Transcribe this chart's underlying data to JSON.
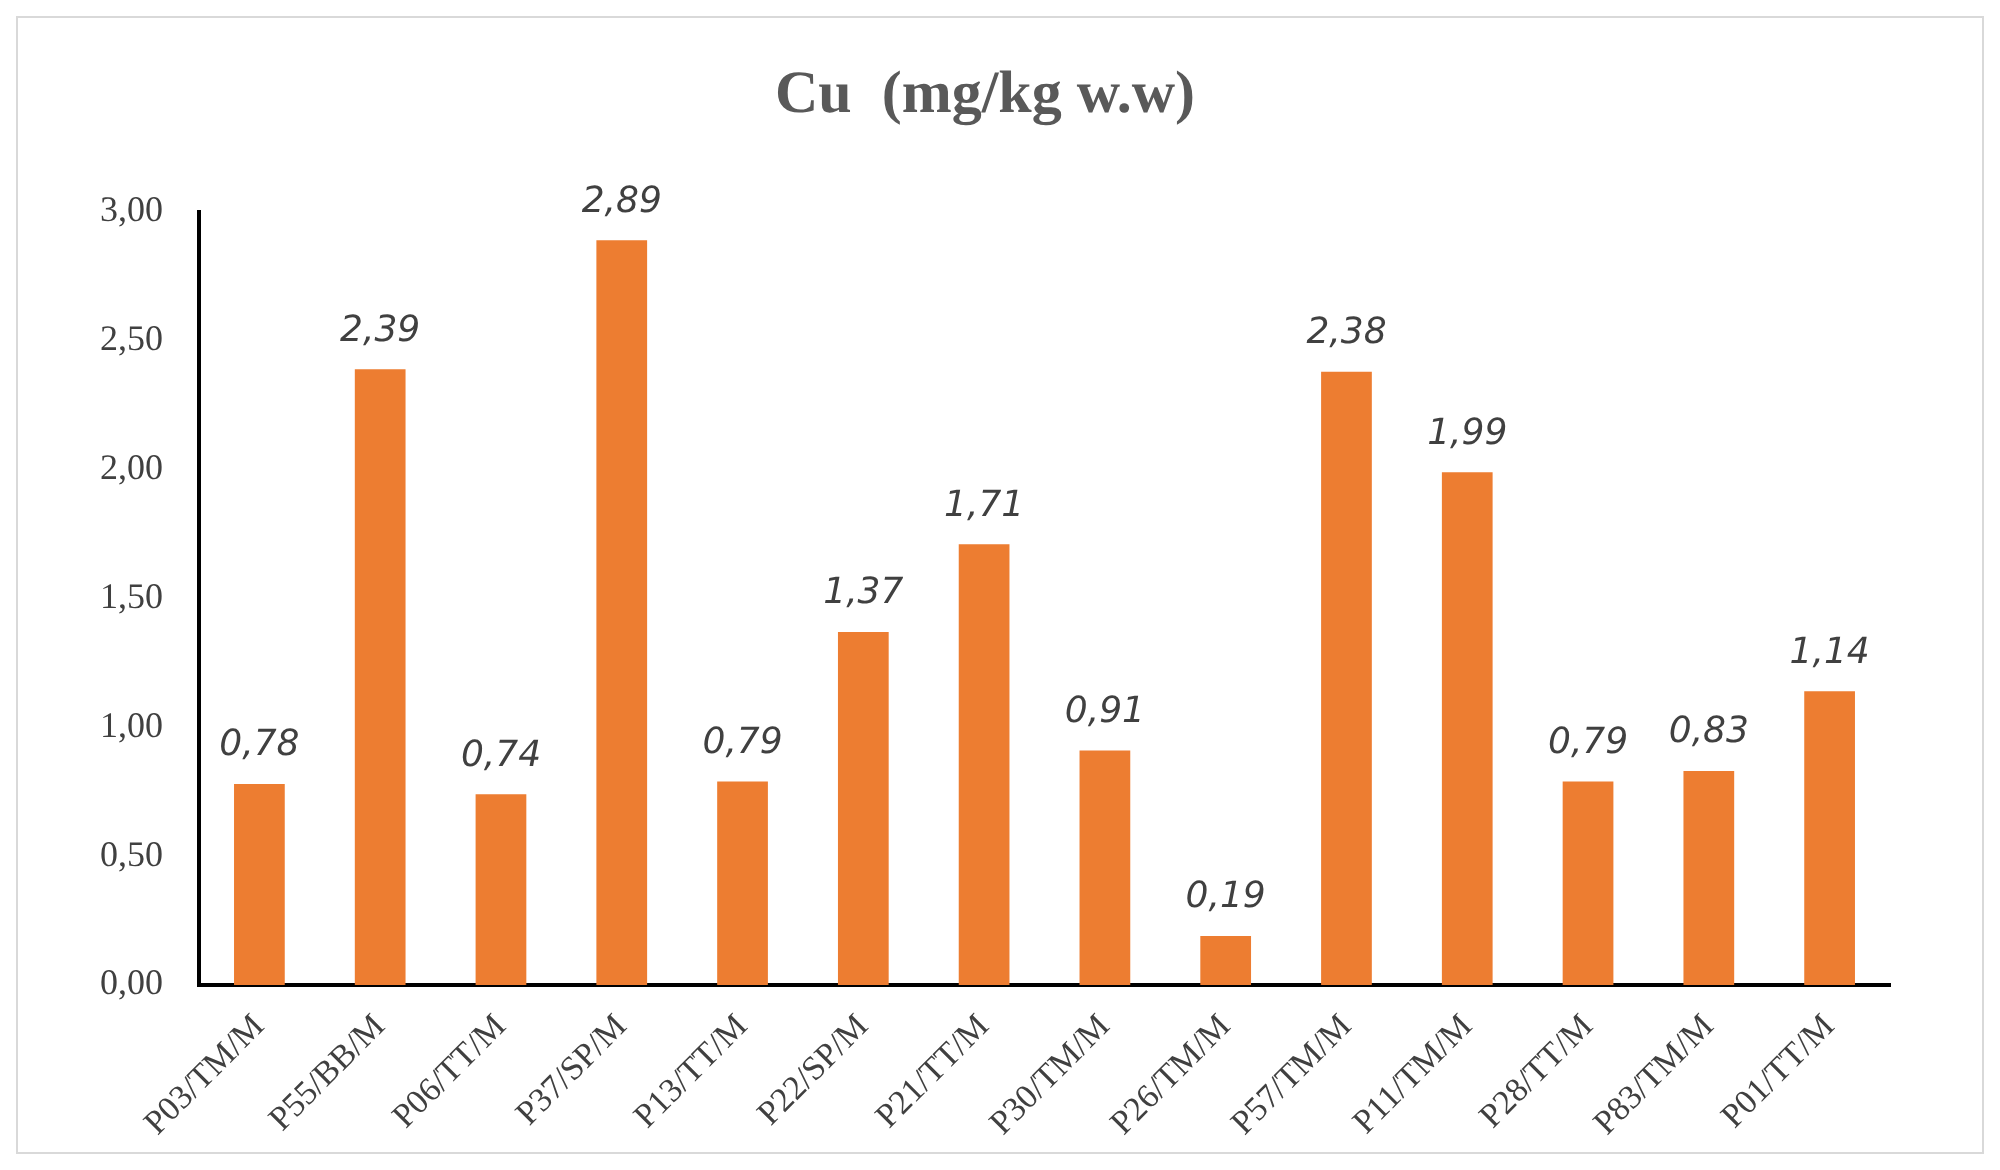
{
  "chart_data": {
    "type": "bar",
    "title": "Cu  (mg/kg w.w)",
    "categories": [
      "P03/TM/M",
      "P55/BB/M",
      "P06/TT/M",
      "P37/SP/M",
      "P13/TT/M",
      "P22/SP/M",
      "P21/TT/M",
      "P30/TM/M",
      "P26/TM/M",
      "P57/TM/M",
      "P11/TM/M",
      "P28/TT/M",
      "P83/TM/M",
      "P01/TT/M"
    ],
    "values": [
      0.78,
      2.39,
      0.74,
      2.89,
      0.79,
      1.37,
      1.71,
      0.91,
      0.19,
      2.38,
      1.99,
      0.79,
      0.83,
      1.14
    ],
    "value_labels": [
      "0,78",
      "2,39",
      "0,74",
      "2,89",
      "0,79",
      "1,37",
      "1,71",
      "0,91",
      "0,19",
      "2,38",
      "1,99",
      "0,79",
      "0,83",
      "1,14"
    ],
    "color": "#ed7d31",
    "ylim": [
      0,
      3
    ],
    "yticks": [
      {
        "value": 0,
        "label": "0,00"
      },
      {
        "value": 0.5,
        "label": "0,50"
      },
      {
        "value": 1,
        "label": "1,00"
      },
      {
        "value": 1.5,
        "label": "1,50"
      },
      {
        "value": 2,
        "label": "2,00"
      },
      {
        "value": 2.5,
        "label": "2,50"
      },
      {
        "value": 3,
        "label": "3,00"
      }
    ],
    "grid": false,
    "legend": false
  }
}
